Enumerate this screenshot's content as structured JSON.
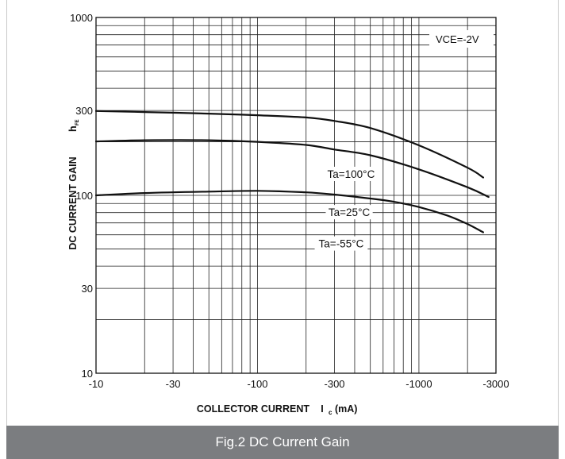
{
  "chart_data": {
    "type": "line",
    "title": "",
    "xlabel": "COLLECTOR CURRENT",
    "xlabel_symbol": "I",
    "xlabel_subscript": "c",
    "xlabel_unit": "(mA)",
    "ylabel": "DC CURRENT GAIN",
    "ylabel_symbol": "h",
    "ylabel_subscript": "FE",
    "x_scale": "log",
    "y_scale": "log",
    "xlim": [
      -10,
      -3000
    ],
    "ylim": [
      10,
      1000
    ],
    "x_ticks": [
      {
        "value": -10,
        "label": "-10"
      },
      {
        "value": -30,
        "label": "-30"
      },
      {
        "value": -100,
        "label": "-100"
      },
      {
        "value": -300,
        "label": "-300"
      },
      {
        "value": -1000,
        "label": "-1000"
      },
      {
        "value": -3000,
        "label": "-3000"
      }
    ],
    "y_ticks": [
      {
        "value": 10,
        "label": "10"
      },
      {
        "value": 30,
        "label": "30"
      },
      {
        "value": 100,
        "label": "100"
      },
      {
        "value": 300,
        "label": "300"
      },
      {
        "value": 1000,
        "label": "1000"
      }
    ],
    "grid": true,
    "annotation": "VCE=-2V",
    "series": [
      {
        "name": "Ta=100°C",
        "x": [
          -10,
          -20,
          -50,
          -100,
          -200,
          -300,
          -500,
          -1000,
          -2000,
          -2500
        ],
        "y": [
          298,
          294,
          288,
          282,
          274,
          262,
          239,
          191,
          143,
          126
        ]
      },
      {
        "name": "Ta=25°C",
        "x": [
          -10,
          -20,
          -50,
          -100,
          -200,
          -300,
          -500,
          -1000,
          -2000,
          -2700
        ],
        "y": [
          201,
          204,
          204,
          200,
          192,
          181,
          168,
          140,
          111,
          98
        ]
      },
      {
        "name": "Ta=-55°C",
        "x": [
          -10,
          -20,
          -50,
          -100,
          -200,
          -300,
          -500,
          -700,
          -1000,
          -1500,
          -2000,
          -2500
        ],
        "y": [
          100,
          103,
          105,
          106,
          104,
          101,
          96,
          92,
          86,
          77,
          69,
          62
        ]
      }
    ]
  },
  "caption": "Fig.2 DC Current Gain"
}
